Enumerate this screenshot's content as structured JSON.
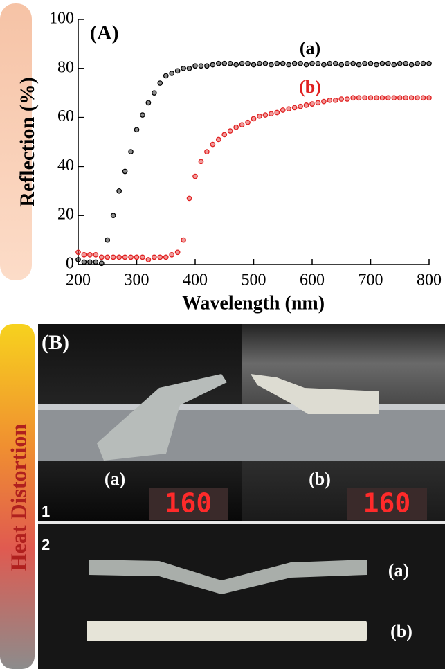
{
  "chart_data": {
    "type": "scatter",
    "annotations": [
      "(A)"
    ],
    "x_label": "Wavelength (nm)",
    "y_label": "Reflection (%)",
    "xlim": [
      200,
      800
    ],
    "ylim": [
      0,
      100
    ],
    "xticks": [
      200,
      300,
      400,
      500,
      600,
      700,
      800
    ],
    "yticks": [
      0,
      20,
      40,
      60,
      80,
      100
    ],
    "x": [
      200,
      210,
      220,
      230,
      240,
      250,
      260,
      270,
      280,
      290,
      300,
      310,
      320,
      330,
      340,
      350,
      360,
      370,
      380,
      390,
      400,
      410,
      420,
      430,
      440,
      450,
      460,
      470,
      480,
      490,
      500,
      510,
      520,
      530,
      540,
      550,
      560,
      570,
      580,
      590,
      600,
      610,
      620,
      630,
      640,
      650,
      660,
      670,
      680,
      690,
      700,
      710,
      720,
      730,
      740,
      750,
      760,
      770,
      780,
      790,
      800
    ],
    "series": [
      {
        "name": "(a)",
        "color": "#000000",
        "values": [
          2,
          1,
          1,
          1,
          0.5,
          10,
          20,
          30,
          38,
          46,
          55,
          61,
          66,
          70,
          74,
          77,
          78,
          79,
          80,
          80,
          81,
          81,
          81,
          81.5,
          82,
          82,
          82,
          81.5,
          82,
          82,
          81.5,
          82,
          82,
          81.5,
          82,
          82,
          81.5,
          82,
          82,
          81.5,
          82,
          82,
          81.5,
          82,
          82,
          81.5,
          82,
          82,
          81.5,
          82,
          82,
          81.5,
          82,
          82,
          81.5,
          82,
          82,
          81.5,
          82,
          82,
          82
        ]
      },
      {
        "name": "(b)",
        "color": "#e02020",
        "values": [
          5,
          4,
          4,
          4,
          3,
          3,
          3,
          3,
          3,
          3,
          3,
          3,
          2,
          3,
          3,
          3,
          4,
          5,
          10,
          27,
          36,
          42,
          46,
          49,
          51,
          53,
          54.5,
          56,
          57,
          58,
          59.5,
          60.5,
          61,
          61.5,
          62,
          63,
          63.5,
          64,
          64.5,
          65,
          65.5,
          66,
          66.5,
          67,
          67,
          67.5,
          67.5,
          68,
          68,
          68,
          68,
          68,
          68,
          68,
          68,
          68,
          68,
          68,
          68,
          68,
          68
        ]
      }
    ]
  },
  "panel_b": {
    "label": "(B)",
    "side_label": "Heat Distortion",
    "row1": {
      "number": "1",
      "left_label": "(a)",
      "right_label": "(b)",
      "displays": [
        "160",
        "160"
      ]
    },
    "row2": {
      "number": "2",
      "labels": [
        "(a)",
        "(b)"
      ]
    }
  }
}
